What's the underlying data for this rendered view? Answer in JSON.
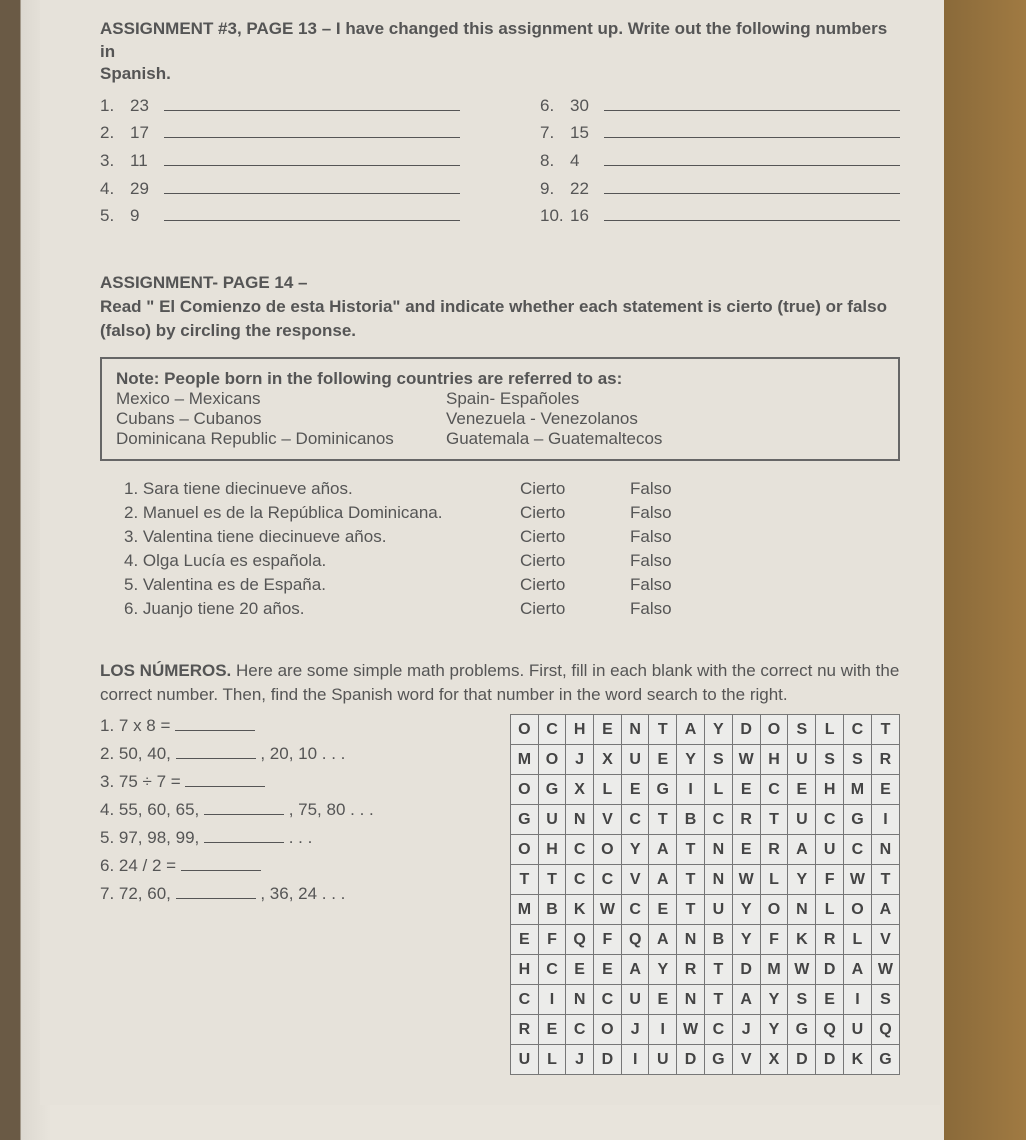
{
  "a3": {
    "title": "ASSIGNMENT #3, PAGE 13 – I have changed this assignment up. Write out the following numbers in",
    "title2": "Spanish.",
    "left": [
      {
        "i": "1.",
        "v": "23"
      },
      {
        "i": "2.",
        "v": "17"
      },
      {
        "i": "3.",
        "v": "11"
      },
      {
        "i": "4.",
        "v": "29"
      },
      {
        "i": "5.",
        "v": "9"
      }
    ],
    "right": [
      {
        "i": "6.",
        "v": "30"
      },
      {
        "i": "7.",
        "v": "15"
      },
      {
        "i": "8.",
        "v": "4"
      },
      {
        "i": "9.",
        "v": "22"
      },
      {
        "i": "10.",
        "v": "16"
      }
    ]
  },
  "a14": {
    "heading": "ASSIGNMENT- PAGE 14 –",
    "instr": "Read \" El Comienzo de esta Historia\" and indicate whether each statement is cierto (true) or falso (falso) by circling the response.",
    "note_title": "Note:  People born in the following countries are referred to as:",
    "note_rows": [
      {
        "l": "Mexico – Mexicans",
        "r": "Spain- Españoles"
      },
      {
        "l": "Cubans – Cubanos",
        "r": "Venezuela - Venezolanos"
      },
      {
        "l": "Dominicana Republic – Dominicanos",
        "r": "Guatemala – Guatemaltecos"
      }
    ],
    "cierto": "Cierto",
    "falso": "Falso",
    "stmts": [
      "1.  Sara tiene diecinueve años.",
      "2.  Manuel es de la República Dominicana.",
      "3.  Valentina tiene diecinueve años.",
      "4.  Olga Lucía es española.",
      "5.  Valentina es de España.",
      "6.  Juanjo tiene 20 años."
    ]
  },
  "numeros": {
    "title": "LOS NÚMEROS.",
    "instr": " Here are some simple math problems. First, fill in each blank with the correct nu with the correct number. Then, find the Spanish word for that number in the word search to the right.",
    "items": [
      {
        "pre": "1. 7 x 8 = ",
        "post": ""
      },
      {
        "pre": "2. 50, 40, ",
        "post": " , 20, 10 . . ."
      },
      {
        "pre": "3. 75 ÷ 7 = ",
        "post": ""
      },
      {
        "pre": "4. 55, 60, 65, ",
        "post": " , 75, 80 . . ."
      },
      {
        "pre": "5. 97, 98, 99, ",
        "post": " . . ."
      },
      {
        "pre": "6. 24 / 2 = ",
        "post": ""
      },
      {
        "pre": "7. 72, 60, ",
        "post": " , 36, 24 . . ."
      }
    ],
    "grid": [
      [
        "O",
        "C",
        "H",
        "E",
        "N",
        "T",
        "A",
        "Y",
        "D",
        "O",
        "S",
        "L",
        "C",
        "T"
      ],
      [
        "M",
        "O",
        "J",
        "X",
        "U",
        "E",
        "Y",
        "S",
        "W",
        "H",
        "U",
        "S",
        "S",
        "R"
      ],
      [
        "O",
        "G",
        "X",
        "L",
        "E",
        "G",
        "I",
        "L",
        "E",
        "C",
        "E",
        "H",
        "M",
        "E"
      ],
      [
        "G",
        "U",
        "N",
        "V",
        "C",
        "T",
        "B",
        "C",
        "R",
        "T",
        "U",
        "C",
        "G",
        "I"
      ],
      [
        "O",
        "H",
        "C",
        "O",
        "Y",
        "A",
        "T",
        "N",
        "E",
        "R",
        "A",
        "U",
        "C",
        "N"
      ],
      [
        "T",
        "T",
        "C",
        "C",
        "V",
        "A",
        "T",
        "N",
        "W",
        "L",
        "Y",
        "F",
        "W",
        "T"
      ],
      [
        "M",
        "B",
        "K",
        "W",
        "C",
        "E",
        "T",
        "U",
        "Y",
        "O",
        "N",
        "L",
        "O",
        "A"
      ],
      [
        "E",
        "F",
        "Q",
        "F",
        "Q",
        "A",
        "N",
        "B",
        "Y",
        "F",
        "K",
        "R",
        "L",
        "V"
      ],
      [
        "H",
        "C",
        "E",
        "E",
        "A",
        "Y",
        "R",
        "T",
        "D",
        "M",
        "W",
        "D",
        "A",
        "W"
      ],
      [
        "C",
        "I",
        "N",
        "C",
        "U",
        "E",
        "N",
        "T",
        "A",
        "Y",
        "S",
        "E",
        "I",
        "S"
      ],
      [
        "R",
        "E",
        "C",
        "O",
        "J",
        "I",
        "W",
        "C",
        "J",
        "Y",
        "G",
        "Q",
        "U",
        "Q"
      ],
      [
        "U",
        "L",
        "J",
        "D",
        "I",
        "U",
        "D",
        "G",
        "V",
        "X",
        "D",
        "D",
        "K",
        "G"
      ]
    ]
  }
}
